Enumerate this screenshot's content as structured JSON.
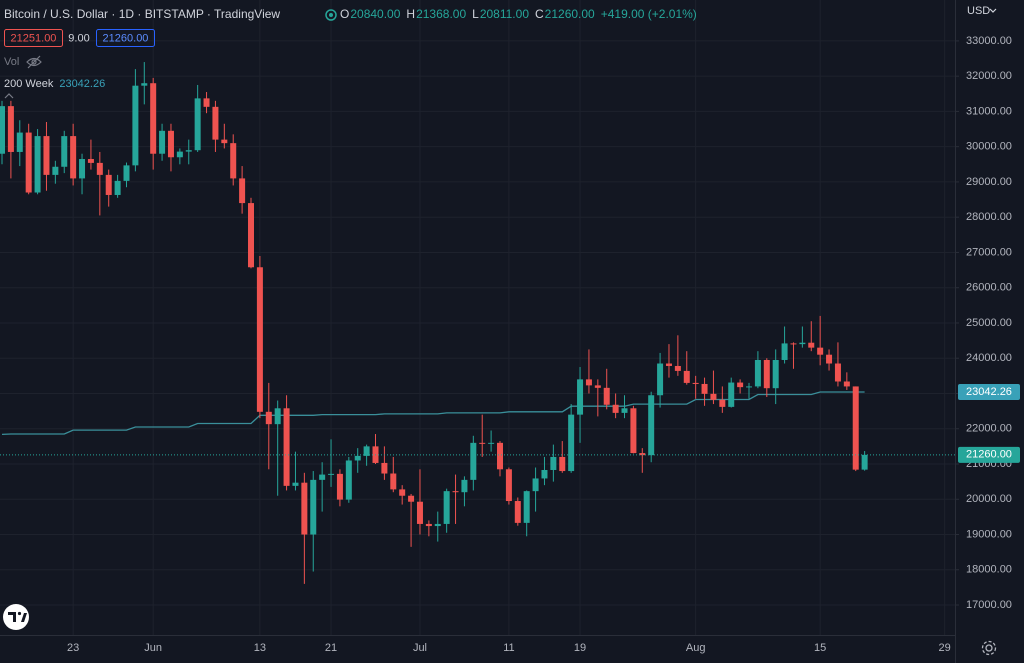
{
  "header": {
    "title": "Bitcoin / U.S. Dollar · 1D · BITSTAMP · TradingView",
    "ohlc": [
      {
        "key": "O",
        "value": "20840.00"
      },
      {
        "key": "H",
        "value": "21368.00"
      },
      {
        "key": "L",
        "value": "20811.00"
      },
      {
        "key": "C",
        "value": "21260.00"
      }
    ],
    "change": "+419.00 (+2.01%)",
    "bid": "21251.00",
    "spread": "9.00",
    "ask": "21260.00",
    "volume_label": "Vol",
    "currency": "USD"
  },
  "chart_data": {
    "type": "candlestick",
    "categories": [
      null,
      null,
      null,
      null,
      null,
      null,
      null,
      null,
      "23",
      null,
      null,
      null,
      null,
      null,
      null,
      null,
      null,
      "Jun",
      null,
      null,
      null,
      null,
      null,
      null,
      null,
      null,
      null,
      null,
      null,
      "13",
      null,
      null,
      null,
      null,
      null,
      null,
      null,
      "21",
      null,
      null,
      null,
      null,
      null,
      null,
      null,
      null,
      null,
      "Jul",
      null,
      null,
      null,
      null,
      null,
      null,
      null,
      null,
      null,
      "11",
      null,
      null,
      null,
      null,
      null,
      null,
      null,
      "19",
      null,
      null,
      null,
      null,
      null,
      null,
      null,
      null,
      null,
      null,
      null,
      null,
      "Aug",
      null,
      null,
      null,
      null,
      null,
      null,
      null,
      null,
      null,
      null,
      null,
      null,
      null,
      "15",
      null,
      null,
      null,
      null,
      null,
      null,
      null,
      null,
      null,
      null,
      null,
      null,
      null,
      "29"
    ],
    "open": [
      29800,
      31150,
      29850,
      30400,
      28700,
      30300,
      29200,
      29430,
      30300,
      29100,
      29650,
      29540,
      29200,
      28630,
      29030,
      29470,
      31730,
      31800,
      29800,
      30450,
      29700,
      29860,
      29900,
      31370,
      31130,
      30200,
      30100,
      29100,
      28400,
      26580,
      22480,
      22130,
      22580,
      20380,
      20470,
      19000,
      20550,
      20700,
      20720,
      19990,
      21100,
      21230,
      21500,
      21030,
      20730,
      20280,
      20100,
      19930,
      19300,
      19240,
      19300,
      20230,
      20200,
      20550,
      21600,
      21590,
      21600,
      20850,
      19950,
      19330,
      20230,
      20590,
      20830,
      21200,
      20800,
      22400,
      23400,
      23230,
      23160,
      22680,
      22450,
      22580,
      21310,
      21250,
      22950,
      23850,
      23780,
      23640,
      23300,
      23270,
      22990,
      22820,
      22620,
      23310,
      23180,
      23200,
      23950,
      23150,
      23950,
      24420,
      24400,
      24440,
      24300,
      24100,
      23850,
      23340,
      23200,
      20840,
      null,
      null,
      null,
      null,
      null,
      null,
      null,
      null,
      null
    ],
    "high": [
      31300,
      31300,
      30750,
      30650,
      30500,
      30700,
      29600,
      30450,
      30650,
      29800,
      30200,
      29850,
      29350,
      29200,
      29550,
      32200,
      32400,
      31950,
      30650,
      30650,
      29950,
      30200,
      31750,
      31550,
      31300,
      30650,
      30350,
      29450,
      28550,
      26900,
      23300,
      22800,
      22950,
      21350,
      20750,
      20800,
      21050,
      21700,
      20850,
      21200,
      21450,
      21550,
      21850,
      21500,
      21200,
      20400,
      20150,
      20850,
      19400,
      19650,
      20300,
      20700,
      20650,
      21800,
      22400,
      21950,
      21650,
      20900,
      20050,
      20250,
      20900,
      21200,
      21550,
      21650,
      22700,
      23750,
      24250,
      23400,
      23700,
      23000,
      22950,
      22650,
      21450,
      23050,
      24150,
      24400,
      24650,
      24200,
      23500,
      23450,
      23650,
      23200,
      23450,
      23400,
      23300,
      24200,
      24000,
      24250,
      24900,
      24450,
      24900,
      25050,
      25200,
      24250,
      24450,
      23600,
      23200,
      21368,
      null,
      null,
      null,
      null,
      null,
      null,
      null,
      null,
      null
    ],
    "low": [
      29500,
      29100,
      29450,
      28650,
      28650,
      28750,
      28950,
      29250,
      28900,
      28650,
      29350,
      28050,
      28300,
      28550,
      28850,
      29300,
      31200,
      29350,
      29600,
      29300,
      29500,
      29500,
      29850,
      30950,
      29850,
      29950,
      28900,
      28100,
      26550,
      22300,
      20850,
      20100,
      20250,
      20250,
      17600,
      17950,
      19650,
      20350,
      19800,
      19900,
      20750,
      20950,
      21000,
      20550,
      20200,
      19850,
      18650,
      19000,
      18950,
      18800,
      19050,
      19300,
      19800,
      20250,
      21200,
      21350,
      20650,
      19850,
      19250,
      18950,
      19650,
      20400,
      20500,
      20750,
      20750,
      21600,
      23000,
      22350,
      22550,
      22300,
      22300,
      21300,
      20750,
      21050,
      22600,
      23450,
      23500,
      23250,
      22850,
      22650,
      22700,
      22450,
      22600,
      23000,
      22850,
      23150,
      22900,
      22700,
      23850,
      23700,
      24300,
      24200,
      23800,
      23650,
      23200,
      23100,
      20800,
      20811,
      null,
      null,
      null,
      null,
      null,
      null,
      null,
      null,
      null
    ],
    "close": [
      31150,
      29850,
      30400,
      28700,
      30300,
      29200,
      29430,
      30300,
      29100,
      29650,
      29540,
      29200,
      28630,
      29030,
      29470,
      31730,
      31800,
      29800,
      30450,
      29700,
      29860,
      29900,
      31370,
      31130,
      30200,
      30100,
      29100,
      28400,
      26580,
      22480,
      22130,
      22580,
      20380,
      20470,
      19000,
      20550,
      20700,
      20720,
      19990,
      21100,
      21230,
      21500,
      21030,
      20730,
      20280,
      20100,
      19930,
      19300,
      19240,
      19300,
      20230,
      20200,
      20550,
      21600,
      21590,
      21600,
      20850,
      19950,
      19330,
      20230,
      20590,
      20830,
      21200,
      20800,
      22400,
      23400,
      23230,
      23160,
      22680,
      22450,
      22580,
      21310,
      21250,
      22950,
      23850,
      23780,
      23640,
      23300,
      23270,
      22990,
      22820,
      22620,
      23310,
      23180,
      23200,
      23950,
      23150,
      23950,
      24420,
      24400,
      24440,
      24300,
      24100,
      23850,
      23340,
      23200,
      20840,
      21260,
      null,
      null,
      null,
      null,
      null,
      null,
      null,
      null,
      null
    ],
    "up_color": "#26a69a",
    "down_color": "#ef5350",
    "ma": {
      "name": "200 Week",
      "label": "23042.26",
      "color": "#3a8f9a",
      "label_color": "#39a1b8",
      "values": [
        21840,
        21850,
        21850,
        21850,
        21850,
        21850,
        21850,
        21850,
        21960,
        21960,
        21960,
        21960,
        21960,
        21960,
        21960,
        22050,
        22050,
        22050,
        22050,
        22050,
        22050,
        22050,
        22150,
        22150,
        22150,
        22150,
        22150,
        22150,
        22150,
        22380,
        22380,
        22380,
        22380,
        22380,
        22380,
        22380,
        22400,
        22400,
        22400,
        22400,
        22400,
        22400,
        22400,
        22420,
        22420,
        22420,
        22420,
        22420,
        22420,
        22420,
        22450,
        22450,
        22450,
        22450,
        22450,
        22450,
        22450,
        22480,
        22480,
        22480,
        22480,
        22480,
        22480,
        22480,
        22640,
        22640,
        22640,
        22640,
        22640,
        22640,
        22640,
        22700,
        22700,
        22700,
        22700,
        22700,
        22700,
        22700,
        22830,
        22830,
        22830,
        22830,
        22830,
        22830,
        22830,
        22970,
        22970,
        22970,
        22970,
        22970,
        22970,
        22970,
        23042.26,
        23042.26,
        23042.26,
        23042.26,
        23042.26,
        23042.26,
        null,
        null,
        null,
        null,
        null,
        null,
        null,
        null,
        null
      ]
    },
    "last_price": {
      "value": 21260,
      "label": "21260.00"
    },
    "ylim": [
      16150,
      34160
    ],
    "yticks": [
      {
        "value": 17000,
        "label": "17000.00"
      },
      {
        "value": 18000,
        "label": "18000.00"
      },
      {
        "value": 19000,
        "label": "19000.00"
      },
      {
        "value": 20000,
        "label": "20000.00"
      },
      {
        "value": 21000,
        "label": "21000.00"
      },
      {
        "value": 22000,
        "label": "22000.00"
      },
      {
        "value": 23000,
        "label": "23000.00"
      },
      {
        "value": 24000,
        "label": "24000.00"
      },
      {
        "value": 25000,
        "label": "25000.00"
      },
      {
        "value": 26000,
        "label": "26000.00"
      },
      {
        "value": 27000,
        "label": "27000.00"
      },
      {
        "value": 28000,
        "label": "28000.00"
      },
      {
        "value": 29000,
        "label": "29000.00"
      },
      {
        "value": 30000,
        "label": "30000.00"
      },
      {
        "value": 31000,
        "label": "31000.00"
      },
      {
        "value": 32000,
        "label": "32000.00"
      },
      {
        "value": 33000,
        "label": "33000.00"
      }
    ],
    "grid": true
  }
}
